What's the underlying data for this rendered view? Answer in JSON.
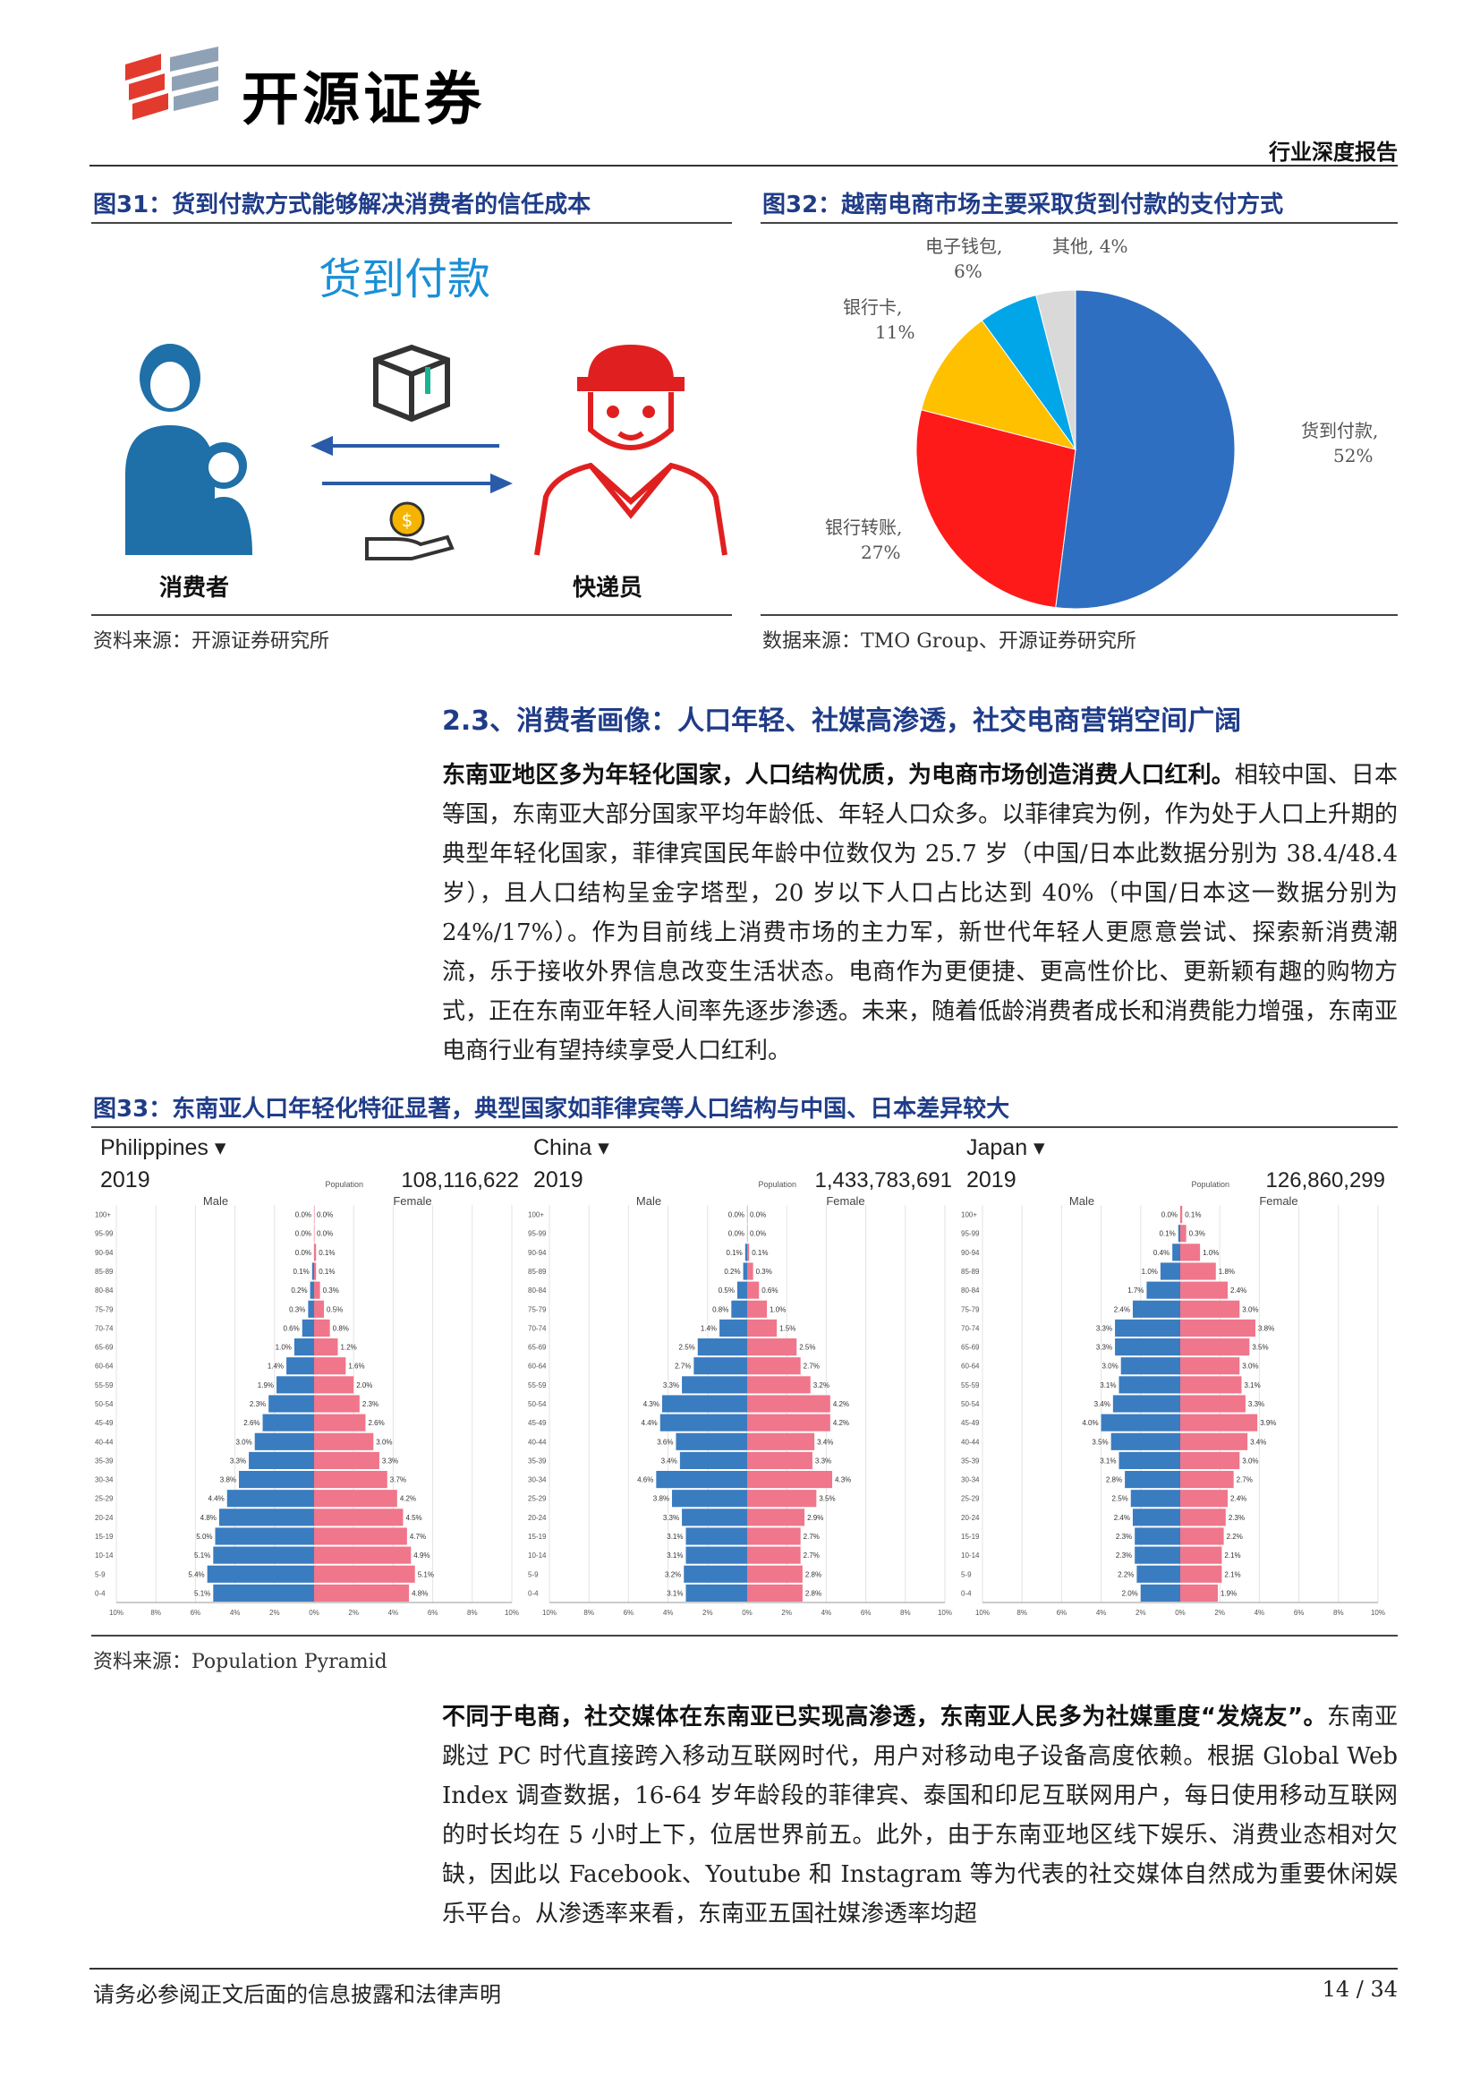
{
  "header": {
    "company": "开源证券",
    "report_type": "行业深度报告"
  },
  "fig31": {
    "caption": "图31：货到付款方式能够解决消费者的信任成本",
    "title": "货到付款",
    "left_label": "消费者",
    "right_label": "快递员",
    "source": "资料来源：开源证券研究所"
  },
  "fig32": {
    "caption": "图32：越南电商市场主要采取货到付款的支付方式",
    "source": "数据来源：TMO Group、开源证券研究所",
    "slice_labels": {
      "cod": "货到付款,",
      "cod_pct": "52%",
      "bank_transfer": "银行转账,",
      "bank_transfer_pct": "27%",
      "bank_card": "银行卡,",
      "bank_card_pct": "11%",
      "ewallet": "电子钱包,",
      "ewallet_pct": "6%",
      "other": "其他, 4%"
    }
  },
  "section": {
    "heading": "2.3、消费者画像：人口年轻、社媒高渗透，社交电商营销空间广阔",
    "para1_bold": "东南亚地区多为年轻化国家，人口结构优质，为电商市场创造消费人口红利。",
    "para1_rest": "相较中国、日本等国，东南亚大部分国家平均年龄低、年轻人口众多。以菲律宾为例，作为处于人口上升期的典型年轻化国家，菲律宾国民年龄中位数仅为 25.7 岁（中国/日本此数据分别为 38.4/48.4 岁），且人口结构呈金字塔型，20 岁以下人口占比达到 40%（中国/日本这一数据分别为 24%/17%）。作为目前线上消费市场的主力军，新世代年轻人更愿意尝试、探索新消费潮流，乐于接收外界信息改变生活状态。电商作为更便捷、更高性价比、更新颖有趣的购物方式，正在东南亚年轻人间率先逐步渗透。未来，随着低龄消费者成长和消费能力增强，东南亚电商行业有望持续享受人口红利。",
    "para2_bold": "不同于电商，社交媒体在东南亚已实现高渗透，东南亚人民多为社媒重度“发烧友”。",
    "para2_rest": "东南亚跳过 PC 时代直接跨入移动互联网时代，用户对移动电子设备高度依赖。根据 Global Web Index 调查数据，16-64 岁年龄段的菲律宾、泰国和印尼互联网用户，每日使用移动互联网的时长均在 5 小时上下，位居世界前五。此外，由于东南亚地区线下娱乐、消费业态相对欠缺，因此以 Facebook、Youtube 和 Instagram 等为代表的社交媒体自然成为重要休闲娱乐平台。从渗透率来看，东南亚五国社媒渗透率均超"
  },
  "fig33": {
    "caption": "图33：东南亚人口年轻化特征显著，典型国家如菲律宾等人口结构与中国、日本差异较大",
    "source": "资料来源：Population Pyramid",
    "population_label": "Population",
    "male_label": "Male",
    "female_label": "Female"
  },
  "chart_data": [
    {
      "type": "pie",
      "categories": [
        "货到付款",
        "银行转账",
        "银行卡",
        "电子钱包",
        "其他"
      ],
      "values": [
        52,
        27,
        11,
        6,
        4
      ],
      "colors": [
        "#2f6fc1",
        "#ff1a1a",
        "#ffc000",
        "#00a6e8",
        "#d9d9d9"
      ]
    },
    {
      "type": "bar",
      "name": "Philippines",
      "year": "2019",
      "population": "108,116,622",
      "categories": [
        "100+",
        "95-99",
        "90-94",
        "85-89",
        "80-84",
        "75-79",
        "70-74",
        "65-69",
        "60-64",
        "55-59",
        "50-54",
        "45-49",
        "40-44",
        "35-39",
        "30-34",
        "25-29",
        "20-24",
        "15-19",
        "10-14",
        "5-9",
        "0-4"
      ],
      "series": [
        {
          "name": "Male",
          "values": [
            0.0,
            0.0,
            0.0,
            0.1,
            0.2,
            0.3,
            0.6,
            1.0,
            1.4,
            1.9,
            2.3,
            2.6,
            3.0,
            3.3,
            3.8,
            4.4,
            4.8,
            5.0,
            5.1,
            5.4,
            5.1
          ]
        },
        {
          "name": "Female",
          "values": [
            0.0,
            0.0,
            0.1,
            0.1,
            0.3,
            0.5,
            0.8,
            1.2,
            1.6,
            2.0,
            2.3,
            2.6,
            3.0,
            3.3,
            3.7,
            4.2,
            4.5,
            4.7,
            4.9,
            5.1,
            4.8
          ]
        }
      ],
      "xticks": [
        "10%",
        "8%",
        "6%",
        "4%",
        "2%",
        "0%",
        "2%",
        "4%",
        "6%",
        "8%",
        "10%"
      ],
      "xlim": [
        -10,
        10
      ]
    },
    {
      "type": "bar",
      "name": "China",
      "year": "2019",
      "population": "1,433,783,691",
      "categories": [
        "100+",
        "95-99",
        "90-94",
        "85-89",
        "80-84",
        "75-79",
        "70-74",
        "65-69",
        "60-64",
        "55-59",
        "50-54",
        "45-49",
        "40-44",
        "35-39",
        "30-34",
        "25-29",
        "20-24",
        "15-19",
        "10-14",
        "5-9",
        "0-4"
      ],
      "series": [
        {
          "name": "Male",
          "values": [
            0.0,
            0.0,
            0.1,
            0.2,
            0.5,
            0.8,
            1.4,
            2.5,
            2.7,
            3.3,
            4.3,
            4.4,
            3.6,
            3.4,
            4.6,
            3.8,
            3.3,
            3.1,
            3.1,
            3.2,
            3.1
          ]
        },
        {
          "name": "Female",
          "values": [
            0.0,
            0.0,
            0.1,
            0.3,
            0.6,
            1.0,
            1.5,
            2.5,
            2.7,
            3.2,
            4.2,
            4.2,
            3.4,
            3.3,
            4.3,
            3.5,
            2.9,
            2.7,
            2.7,
            2.8,
            2.8
          ]
        }
      ],
      "xticks": [
        "10%",
        "8%",
        "6%",
        "4%",
        "2%",
        "0%",
        "2%",
        "4%",
        "6%",
        "8%",
        "10%"
      ],
      "xlim": [
        -10,
        10
      ]
    },
    {
      "type": "bar",
      "name": "Japan",
      "year": "2019",
      "population": "126,860,299",
      "categories": [
        "100+",
        "95-99",
        "90-94",
        "85-89",
        "80-84",
        "75-79",
        "70-74",
        "65-69",
        "60-64",
        "55-59",
        "50-54",
        "45-49",
        "40-44",
        "35-39",
        "30-34",
        "25-29",
        "20-24",
        "15-19",
        "10-14",
        "5-9",
        "0-4"
      ],
      "series": [
        {
          "name": "Male",
          "values": [
            0.0,
            0.1,
            0.4,
            1.0,
            1.7,
            2.4,
            3.3,
            3.3,
            3.0,
            3.1,
            3.4,
            4.0,
            3.5,
            3.1,
            2.8,
            2.5,
            2.4,
            2.3,
            2.3,
            2.2,
            2.0
          ]
        },
        {
          "name": "Female",
          "values": [
            0.1,
            0.3,
            1.0,
            1.8,
            2.4,
            3.0,
            3.8,
            3.5,
            3.0,
            3.1,
            3.3,
            3.9,
            3.4,
            3.0,
            2.7,
            2.4,
            2.3,
            2.2,
            2.1,
            2.1,
            1.9
          ]
        }
      ],
      "xticks": [
        "10%",
        "8%",
        "6%",
        "4%",
        "2%",
        "0%",
        "2%",
        "4%",
        "6%",
        "8%",
        "10%"
      ],
      "xlim": [
        -10,
        10
      ]
    }
  ],
  "footer": {
    "note": "请务必参阅正文后面的信息披露和法律声明",
    "page": "14 / 34"
  }
}
